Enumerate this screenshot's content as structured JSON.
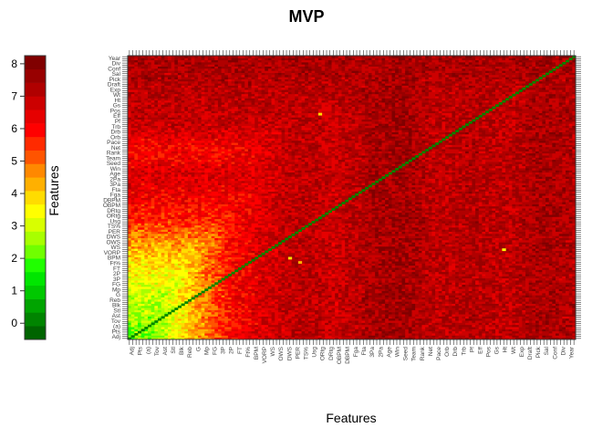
{
  "chart_data": {
    "type": "heatmap",
    "title": "MVP",
    "xlabel": "Features",
    "ylabel": "Features",
    "grid": false,
    "legend": "left",
    "matrix_size": 134,
    "diagonal_value": 0,
    "color_scale": {
      "min": -0.5,
      "max": 8.25,
      "ticks": [
        0,
        1,
        2,
        3,
        4,
        5,
        6,
        7,
        8
      ],
      "colors": [
        "#006400",
        "#008400",
        "#00a400",
        "#00c800",
        "#00e600",
        "#20ff00",
        "#70ff00",
        "#a8ff00",
        "#d8ff00",
        "#ffff00",
        "#ffdc00",
        "#ffb000",
        "#ff8800",
        "#ff5400",
        "#ff2a00",
        "#ff0000",
        "#e60000",
        "#cc0000",
        "#b00000",
        "#980000",
        "#800000"
      ]
    },
    "row_band_values": [
      2.2,
      2.6,
      3.0,
      3.6,
      4.4,
      5.6,
      6.2,
      6.6,
      6.0,
      6.8,
      7.0,
      7.2,
      7.4
    ],
    "col_band_values": [
      1.2,
      2.8,
      4.4,
      6.0,
      6.6,
      7.1,
      6.8,
      7.3,
      7.5,
      7.0,
      7.2,
      7.0,
      7.4,
      7.2
    ],
    "outliers": [
      {
        "row": 42,
        "col": 112,
        "value": 3.5
      },
      {
        "row": 106,
        "col": 57,
        "value": 3.8
      },
      {
        "row": 38,
        "col": 48,
        "value": 4.0
      },
      {
        "row": 36,
        "col": 51,
        "value": 4.2
      }
    ],
    "x_tick_labels": [
      "Adj",
      "Pts",
      "(a)",
      "Tov",
      "Ast",
      "Stl",
      "Blk",
      "Reb",
      "G",
      "Mp",
      "FG",
      "3P",
      "2P",
      "FT",
      "Ft%",
      "BPM",
      "VORP",
      "WS",
      "OWS",
      "DWS",
      "PER",
      "TS%",
      "Usg",
      "ORtg",
      "DRtg",
      "OBPM",
      "DBPM",
      "Fga",
      "Fta",
      "3Pa",
      "2Pa",
      "Age",
      "Win",
      "Seed",
      "Team",
      "Rank",
      "Net",
      "Pace",
      "Orb",
      "Drb",
      "Trb",
      "Pf",
      "Eff",
      "Pos",
      "Gs",
      "Ht",
      "Wt",
      "Exp",
      "Draft",
      "Pick",
      "Sal",
      "Conf",
      "Div",
      "Year"
    ],
    "y_tick_labels": [
      "Adj",
      "Pts",
      "(a)",
      "Tov",
      "Ast",
      "Stl",
      "Blk",
      "Reb",
      "G",
      "Mp",
      "FG",
      "3P",
      "2P",
      "FT",
      "Ft%",
      "BPM",
      "VORP",
      "WS",
      "OWS",
      "DWS",
      "PER",
      "TS%",
      "Usg",
      "ORtg",
      "DRtg",
      "OBPM",
      "DBPM",
      "Fga",
      "Fta",
      "3Pa",
      "2Pa",
      "Age",
      "Win",
      "Seed",
      "Team",
      "Rank",
      "Net",
      "Pace",
      "Orb",
      "Drb",
      "Trb",
      "Pf",
      "Eff",
      "Pos",
      "Gs",
      "Ht",
      "Wt",
      "Exp",
      "Draft",
      "Pick",
      "Sal",
      "Conf",
      "Div",
      "Year"
    ]
  }
}
